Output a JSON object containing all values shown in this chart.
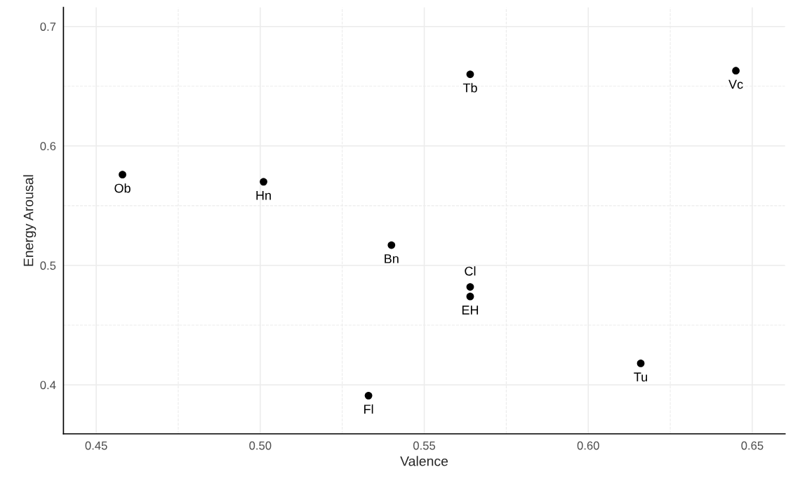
{
  "chart_data": {
    "type": "scatter",
    "xlabel": "Valence",
    "ylabel": "Energy Arousal",
    "x": [
      0.458,
      0.501,
      0.54,
      0.533,
      0.564,
      0.564,
      0.564,
      0.616,
      0.645
    ],
    "series": [
      {
        "color": "#000000",
        "values": [
          0.576,
          0.57,
          0.517,
          0.391,
          0.66,
          0.482,
          0.474,
          0.418,
          0.663
        ]
      }
    ],
    "annotations": [
      {
        "text": "Ob",
        "x": 0.458,
        "y": 0.576
      },
      {
        "text": "Hn",
        "x": 0.501,
        "y": 0.57
      },
      {
        "text": "Bn",
        "x": 0.54,
        "y": 0.517
      },
      {
        "text": "Fl",
        "x": 0.533,
        "y": 0.391
      },
      {
        "text": "Tb",
        "x": 0.564,
        "y": 0.66
      },
      {
        "text": "Cl",
        "x": 0.564,
        "y": 0.482
      },
      {
        "text": "EH",
        "x": 0.564,
        "y": 0.474
      },
      {
        "text": "Tu",
        "x": 0.616,
        "y": 0.418
      },
      {
        "text": "Vc",
        "x": 0.645,
        "y": 0.663
      }
    ],
    "xlim": [
      0.44,
      0.66
    ],
    "ylim": [
      0.359,
      0.716
    ],
    "xticks": [
      {
        "value": 0.45,
        "label": "0.45"
      },
      {
        "value": 0.5,
        "label": "0.50"
      },
      {
        "value": 0.55,
        "label": "0.55"
      },
      {
        "value": 0.6,
        "label": "0.60"
      },
      {
        "value": 0.65,
        "label": "0.65"
      }
    ],
    "yticks": [
      0.4,
      0.5,
      0.6,
      0.7
    ],
    "grid": true,
    "marker": "circle"
  }
}
